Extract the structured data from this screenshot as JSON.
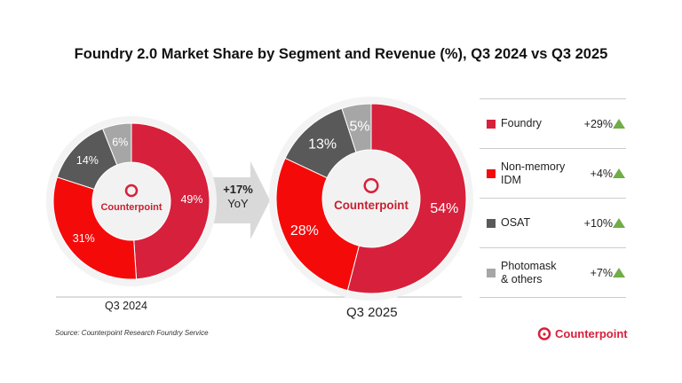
{
  "chart_data": [
    {
      "type": "pie",
      "title": "Foundry 2.0 Market Share by Segment and Revenue (%), Q3 2024 vs Q3 2025",
      "label": "Q3 2024",
      "categories": [
        "Foundry",
        "Non-memory IDM",
        "OSAT",
        "Photomask & others"
      ],
      "values": [
        49,
        31,
        14,
        6
      ],
      "labels": [
        "49%",
        "31%",
        "14%",
        "6%"
      ]
    },
    {
      "type": "pie",
      "label": "Q3 2025",
      "categories": [
        "Foundry",
        "Non-memory IDM",
        "OSAT",
        "Photomask & others"
      ],
      "values": [
        54,
        28,
        13,
        5
      ],
      "labels": [
        "54%",
        "28%",
        "13%",
        "5%"
      ]
    }
  ],
  "title": "Foundry 2.0 Market Share by Segment and Revenue (%), Q3 2024 vs Q3 2025",
  "colors": [
    "#d7203b",
    "#f50a0a",
    "#595959",
    "#a6a6a6"
  ],
  "growth": {
    "value": "+17%",
    "label": "YoY"
  },
  "legend": [
    {
      "name": "Foundry",
      "change": "+29%",
      "trend": "up"
    },
    {
      "name": "Non-memory IDM",
      "change": "+4%",
      "trend": "up"
    },
    {
      "name": "OSAT",
      "change": "+10%",
      "trend": "up"
    },
    {
      "name": "Photomask & others",
      "change": "+7%",
      "trend": "up"
    }
  ],
  "watermark": "Counterpoint",
  "source": "Source: Counterpoint Research Foundry Service",
  "brand": "Counterpoint"
}
